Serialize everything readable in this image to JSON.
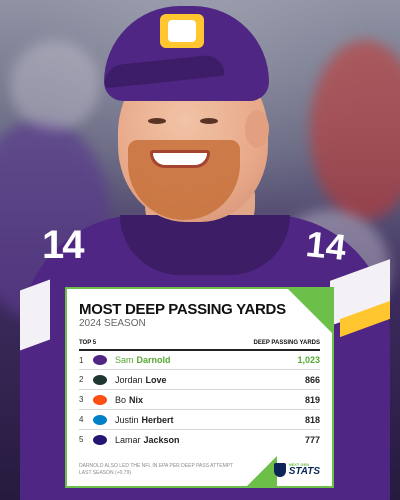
{
  "card": {
    "title": "MOST DEEP PASSING YARDS",
    "subtitle": "2024 SEASON",
    "col_left": "TOP 5",
    "col_right": "DEEP PASSING YARDS",
    "accent_color": "#6cc04a",
    "rows": [
      {
        "rank": "1",
        "first": "Sam",
        "last": "Darnold",
        "value": "1,023",
        "team_icon": "vikings-logo-icon",
        "team_color": "#4f2683"
      },
      {
        "rank": "2",
        "first": "Jordan",
        "last": "Love",
        "value": "866",
        "team_icon": "packers-logo-icon",
        "team_color": "#203731"
      },
      {
        "rank": "3",
        "first": "Bo",
        "last": "Nix",
        "value": "819",
        "team_icon": "broncos-logo-icon",
        "team_color": "#fb4f14"
      },
      {
        "rank": "4",
        "first": "Justin",
        "last": "Herbert",
        "value": "818",
        "team_icon": "chargers-logo-icon",
        "team_color": "#0080c6"
      },
      {
        "rank": "5",
        "first": "Lamar",
        "last": "Jackson",
        "value": "777",
        "team_icon": "ravens-logo-icon",
        "team_color": "#241773"
      }
    ],
    "footnote": "DARNOLD ALSO LED THE NFL IN EPA PER DEEP PASS ATTEMPT LAST SEASON (+0.79)",
    "brand_top": "NEXT GEN",
    "brand_bottom": "STATS"
  },
  "photo": {
    "jersey_number": "14",
    "team_color": "#4f2683",
    "gold_color": "#ffc62f"
  }
}
